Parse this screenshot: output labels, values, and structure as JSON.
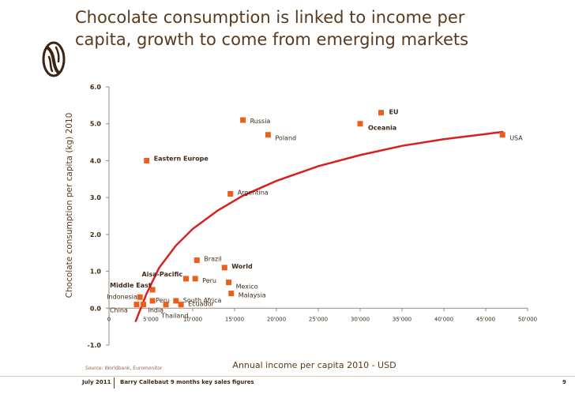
{
  "header": {
    "title_line1": "Chocolate consumption is linked to income per",
    "title_line2": "capita, growth to come from emerging markets"
  },
  "chart_data": {
    "type": "scatter",
    "xlabel": "Annual income per capita 2010 - USD",
    "ylabel": "Chocolate consumption per capita (kg) 2010",
    "xlim": [
      0,
      50000
    ],
    "ylim": [
      -1,
      6
    ],
    "x_ticks": [
      0,
      5000,
      10000,
      15000,
      20000,
      25000,
      30000,
      35000,
      40000,
      45000,
      50000
    ],
    "x_tick_labels": [
      "0",
      "5'000",
      "10'000",
      "15'000",
      "20'000",
      "25'000",
      "30'000",
      "35'000",
      "40'000",
      "45'000",
      "50'000"
    ],
    "y_ticks": [
      -1,
      0,
      1,
      2,
      3,
      4,
      5,
      6
    ],
    "y_tick_labels": [
      "-1.0",
      "0.0",
      "1.0",
      "2.0",
      "3.0",
      "4.0",
      "5.0",
      "6.0"
    ],
    "grid": false,
    "marker_color": "#e8601c",
    "trend_color": "#d7201f",
    "points": [
      {
        "label": "EU",
        "x": 32500,
        "y": 5.3,
        "bold": true
      },
      {
        "label": "Oceania",
        "x": 30000,
        "y": 5.0,
        "bold": true
      },
      {
        "label": "Russia",
        "x": 16000,
        "y": 5.1,
        "bold": false
      },
      {
        "label": "Poland",
        "x": 19000,
        "y": 4.7,
        "bold": false
      },
      {
        "label": "USA",
        "x": 47000,
        "y": 4.7,
        "bold": false
      },
      {
        "label": "Eastern Europe",
        "x": 4500,
        "y": 4.0,
        "bold": true
      },
      {
        "label": "Argentina",
        "x": 14500,
        "y": 3.1,
        "bold": false
      },
      {
        "label": "Brazil",
        "x": 10500,
        "y": 1.3,
        "bold": false
      },
      {
        "label": "World",
        "x": 13800,
        "y": 1.1,
        "bold": true
      },
      {
        "label": "Aisa-Pacific",
        "x": 9200,
        "y": 0.8,
        "bold": true
      },
      {
        "label": "Peru",
        "x": 10300,
        "y": 0.8,
        "bold": false
      },
      {
        "label": "Mexico",
        "x": 14300,
        "y": 0.7,
        "bold": false
      },
      {
        "label": "Middle East",
        "x": 5200,
        "y": 0.5,
        "bold": true
      },
      {
        "label": "Malaysia",
        "x": 14600,
        "y": 0.4,
        "bold": false
      },
      {
        "label": "Indonesia",
        "x": 3700,
        "y": 0.3,
        "bold": false
      },
      {
        "label": "Peru",
        "x": 5200,
        "y": 0.2,
        "bold": false
      },
      {
        "label": "South Africa",
        "x": 8000,
        "y": 0.2,
        "bold": false
      },
      {
        "label": "China",
        "x": 3300,
        "y": 0.1,
        "bold": false
      },
      {
        "label": "India",
        "x": 4100,
        "y": 0.1,
        "bold": false
      },
      {
        "label": "Ecuador",
        "x": 8600,
        "y": 0.1,
        "bold": false
      },
      {
        "label": "Thailand",
        "x": 6800,
        "y": 0.1,
        "bold": false
      }
    ],
    "trend_curve": [
      {
        "x": 3200,
        "y": -0.35
      },
      {
        "x": 4500,
        "y": 0.4
      },
      {
        "x": 6000,
        "y": 1.1
      },
      {
        "x": 8000,
        "y": 1.7
      },
      {
        "x": 10000,
        "y": 2.15
      },
      {
        "x": 13000,
        "y": 2.65
      },
      {
        "x": 16000,
        "y": 3.05
      },
      {
        "x": 20000,
        "y": 3.45
      },
      {
        "x": 25000,
        "y": 3.85
      },
      {
        "x": 30000,
        "y": 4.15
      },
      {
        "x": 35000,
        "y": 4.4
      },
      {
        "x": 40000,
        "y": 4.58
      },
      {
        "x": 45000,
        "y": 4.72
      },
      {
        "x": 47000,
        "y": 4.78
      }
    ]
  },
  "source": "Source: Worldbank, Euromonitor",
  "footer": {
    "date": "July 2011",
    "doc": "Barry Callebaut 9 months key sales figures",
    "page": "9"
  }
}
